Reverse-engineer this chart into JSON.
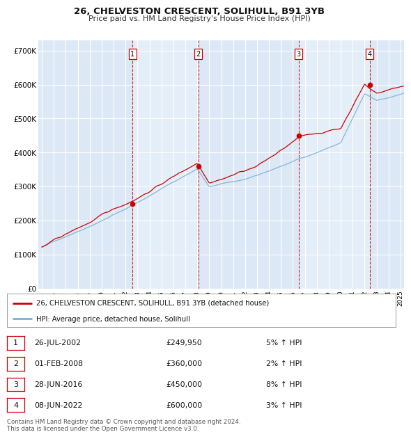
{
  "title_line1": "26, CHELVESTON CRESCENT, SOLIHULL, B91 3YB",
  "title_line2": "Price paid vs. HM Land Registry's House Price Index (HPI)",
  "background_color": "#ffffff",
  "plot_bg_color": "#dce8f5",
  "plot_bg_light": "#e8f0f8",
  "grid_color": "#ffffff",
  "sale_color": "#cc0000",
  "hpi_color": "#7ab0d4",
  "ylim": [
    0,
    730000
  ],
  "yticks": [
    0,
    100000,
    200000,
    300000,
    400000,
    500000,
    600000,
    700000
  ],
  "ytick_labels": [
    "£0",
    "£100K",
    "£200K",
    "£300K",
    "£400K",
    "£500K",
    "£600K",
    "£700K"
  ],
  "xlim_start": 1994.7,
  "xlim_end": 2025.3,
  "xtick_years": [
    1995,
    1996,
    1997,
    1998,
    1999,
    2000,
    2001,
    2002,
    2003,
    2004,
    2005,
    2006,
    2007,
    2008,
    2009,
    2010,
    2011,
    2012,
    2013,
    2014,
    2015,
    2016,
    2017,
    2018,
    2019,
    2020,
    2021,
    2022,
    2023,
    2024,
    2025
  ],
  "purchases": [
    {
      "label": "1",
      "date_num": 2002.57,
      "price": 249950
    },
    {
      "label": "2",
      "date_num": 2008.08,
      "price": 360000
    },
    {
      "label": "3",
      "date_num": 2016.49,
      "price": 450000
    },
    {
      "label": "4",
      "date_num": 2022.44,
      "price": 600000
    }
  ],
  "legend_entries": [
    "26, CHELVESTON CRESCENT, SOLIHULL, B91 3YB (detached house)",
    "HPI: Average price, detached house, Solihull"
  ],
  "table_rows": [
    {
      "num": "1",
      "date": "26-JUL-2002",
      "price": "£249,950",
      "pct": "5% ↑ HPI"
    },
    {
      "num": "2",
      "date": "01-FEB-2008",
      "price": "£360,000",
      "pct": "2% ↑ HPI"
    },
    {
      "num": "3",
      "date": "28-JUN-2016",
      "price": "£450,000",
      "pct": "8% ↑ HPI"
    },
    {
      "num": "4",
      "date": "08-JUN-2022",
      "price": "£600,000",
      "pct": "3% ↑ HPI"
    }
  ],
  "footnote": "Contains HM Land Registry data © Crown copyright and database right 2024.\nThis data is licensed under the Open Government Licence v3.0."
}
